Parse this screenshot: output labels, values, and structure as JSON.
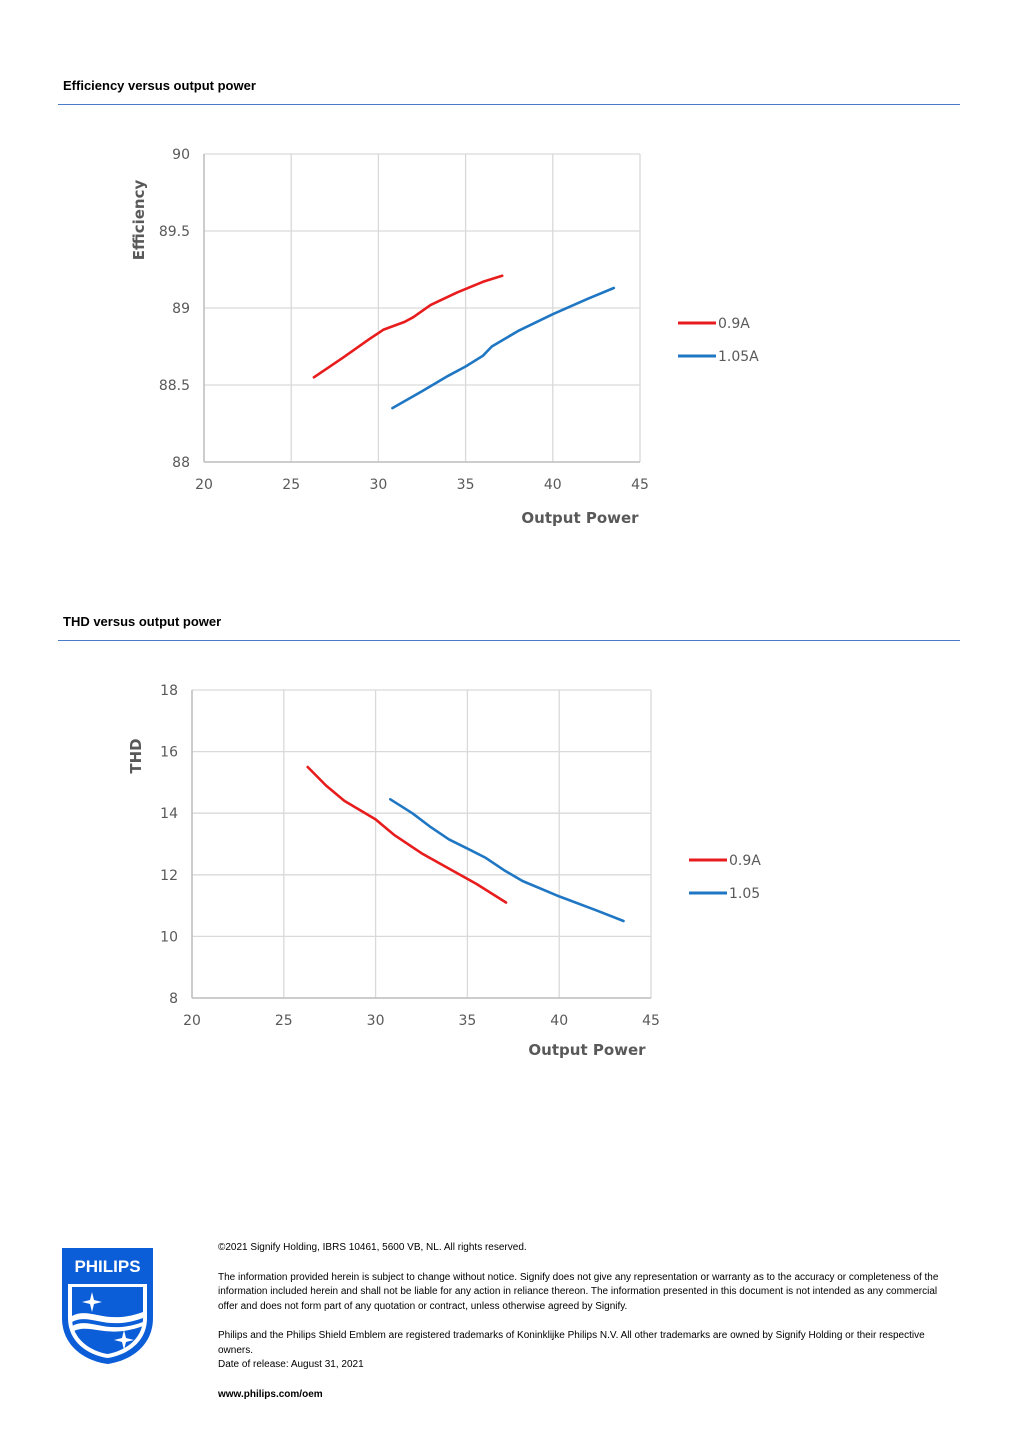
{
  "sections": {
    "efficiency_title": "Efficiency versus output power",
    "thd_title": "THD versus output power"
  },
  "colors": {
    "series1": "#e81c1c",
    "series2": "#1f77c4",
    "rule": "#4a7bc8"
  },
  "chart_data": [
    {
      "type": "line",
      "xlabel": "Output Power",
      "ylabel": "Efficiency",
      "xlim": [
        20,
        45
      ],
      "ylim": [
        88,
        90
      ],
      "xticks": [
        "20",
        "25",
        "30",
        "35",
        "40",
        "45"
      ],
      "yticks": [
        "88",
        "88.5",
        "89",
        "89.5",
        "90"
      ],
      "grid": true,
      "legend": "right",
      "series": [
        {
          "name": "0.9A",
          "color": "#e81c1c",
          "x": [
            26.3,
            28,
            29.5,
            30.3,
            31.5,
            32,
            33,
            34.5,
            36,
            37.1
          ],
          "y": [
            88.55,
            88.68,
            88.8,
            88.86,
            88.91,
            88.94,
            89.02,
            89.1,
            89.17,
            89.21
          ]
        },
        {
          "name": "1.05A",
          "color": "#1f77c4",
          "x": [
            30.8,
            32.5,
            34,
            35,
            36,
            36.5,
            38,
            40,
            42,
            43.5
          ],
          "y": [
            88.35,
            88.46,
            88.56,
            88.62,
            88.69,
            88.75,
            88.85,
            88.96,
            89.06,
            89.13
          ]
        }
      ]
    },
    {
      "type": "line",
      "xlabel": "Output Power",
      "ylabel": "THD",
      "xlim": [
        20,
        45
      ],
      "ylim": [
        8,
        18
      ],
      "xticks": [
        "20",
        "25",
        "30",
        "35",
        "40",
        "45"
      ],
      "yticks": [
        "8",
        "10",
        "12",
        "14",
        "16",
        "18"
      ],
      "grid": true,
      "legend": "right",
      "series": [
        {
          "name": "0.9A",
          "color": "#e81c1c",
          "x": [
            26.3,
            27.3,
            28.3,
            30,
            31,
            32.5,
            34,
            35.5,
            37.1
          ],
          "y": [
            15.5,
            14.9,
            14.4,
            13.8,
            13.3,
            12.7,
            12.2,
            11.7,
            11.1
          ]
        },
        {
          "name": "1.05",
          "color": "#1f77c4",
          "x": [
            30.8,
            32,
            33,
            34,
            35,
            36,
            37,
            38,
            40,
            42,
            43.5
          ],
          "y": [
            14.45,
            14.0,
            13.55,
            13.15,
            12.85,
            12.55,
            12.15,
            11.8,
            11.3,
            10.85,
            10.5
          ]
        }
      ]
    }
  ],
  "footer": {
    "copyright": "©2021 Signify Holding, IBRS 10461, 5600 VB, NL. All rights reserved.",
    "disclaimer": "The information provided herein is subject to change without notice. Signify does not give any representation or warranty as to the accuracy or completeness of the information included herein and shall not be liable for any action in reliance thereon. The information presented in this document is not intended as any commercial offer and does not form part of any quotation or contract, unless otherwise agreed by Signify.",
    "trademarks": "Philips and the Philips Shield Emblem are registered trademarks of Koninklijke Philips N.V. All other trademarks are owned by Signify Holding or their respective owners.",
    "release": "Date of release: August 31, 2021",
    "website": "www.philips.com/oem"
  },
  "logo": {
    "text": "PHILIPS",
    "icon": "philips-shield-icon",
    "color": "#0b5ed7"
  }
}
